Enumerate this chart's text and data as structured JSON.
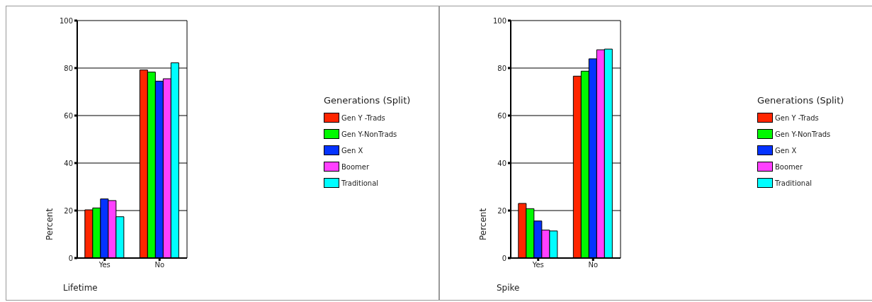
{
  "chart_data": [
    {
      "type": "bar",
      "title": "Lifetime",
      "ylabel": "Percent",
      "legend_title": "Generations (Split)",
      "categories": [
        "Yes",
        "No"
      ],
      "ylim": [
        0,
        100
      ],
      "yticks": [
        0,
        20,
        40,
        60,
        80,
        100
      ],
      "grid": "y",
      "legend": "right",
      "series": [
        {
          "name": "Gen Y -Trads",
          "color": "#ff2600",
          "values": [
            20.3,
            79.2
          ]
        },
        {
          "name": "Gen Y-NonTrads",
          "color": "#00f900",
          "values": [
            21.1,
            78.3
          ]
        },
        {
          "name": "Gen X",
          "color": "#0433ff",
          "values": [
            24.9,
            74.5
          ]
        },
        {
          "name": "Boomer",
          "color": "#ff40ff",
          "values": [
            24.2,
            75.5
          ]
        },
        {
          "name": "Traditional",
          "color": "#00fdff",
          "values": [
            17.4,
            82.2
          ]
        }
      ]
    },
    {
      "type": "bar",
      "title": "Spike",
      "ylabel": "Percent",
      "legend_title": "Generations (Split)",
      "categories": [
        "Yes",
        "No"
      ],
      "ylim": [
        0,
        100
      ],
      "yticks": [
        0,
        20,
        40,
        60,
        80,
        100
      ],
      "grid": "y",
      "legend": "right",
      "series": [
        {
          "name": "Gen Y -Trads",
          "color": "#ff2600",
          "values": [
            23.0,
            76.6
          ]
        },
        {
          "name": "Gen Y-NonTrads",
          "color": "#00f900",
          "values": [
            20.8,
            78.7
          ]
        },
        {
          "name": "Gen X",
          "color": "#0433ff",
          "values": [
            15.6,
            83.9
          ]
        },
        {
          "name": "Boomer",
          "color": "#ff40ff",
          "values": [
            11.8,
            87.7
          ]
        },
        {
          "name": "Traditional",
          "color": "#00fdff",
          "values": [
            11.4,
            88.0
          ]
        }
      ]
    }
  ]
}
